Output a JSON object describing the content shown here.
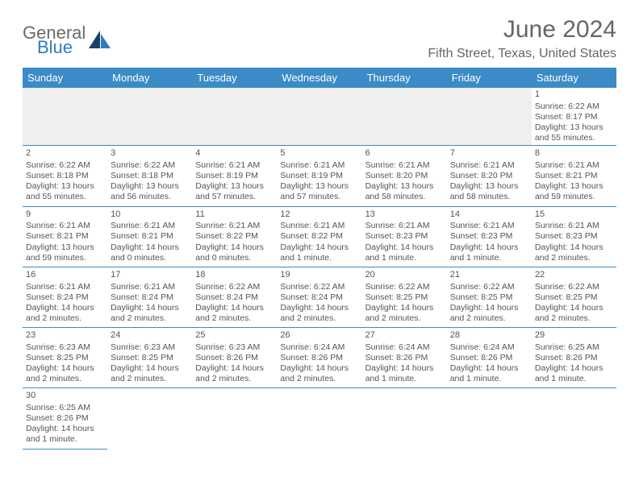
{
  "logo": {
    "text1": "General",
    "text2": "Blue"
  },
  "title": "June 2024",
  "subtitle": "Fifth Street, Texas, United States",
  "colors": {
    "header_bg": "#3b8bc6",
    "header_text": "#ffffff",
    "border": "#3b8bc6",
    "text": "#555555",
    "logo_gray": "#6a6a6a",
    "logo_blue": "#2f7bbf"
  },
  "day_headers": [
    "Sunday",
    "Monday",
    "Tuesday",
    "Wednesday",
    "Thursday",
    "Friday",
    "Saturday"
  ],
  "weeks": [
    [
      null,
      null,
      null,
      null,
      null,
      null,
      {
        "n": "1",
        "sr": "Sunrise: 6:22 AM",
        "ss": "Sunset: 8:17 PM",
        "dl": "Daylight: 13 hours and 55 minutes."
      }
    ],
    [
      {
        "n": "2",
        "sr": "Sunrise: 6:22 AM",
        "ss": "Sunset: 8:18 PM",
        "dl": "Daylight: 13 hours and 55 minutes."
      },
      {
        "n": "3",
        "sr": "Sunrise: 6:22 AM",
        "ss": "Sunset: 8:18 PM",
        "dl": "Daylight: 13 hours and 56 minutes."
      },
      {
        "n": "4",
        "sr": "Sunrise: 6:21 AM",
        "ss": "Sunset: 8:19 PM",
        "dl": "Daylight: 13 hours and 57 minutes."
      },
      {
        "n": "5",
        "sr": "Sunrise: 6:21 AM",
        "ss": "Sunset: 8:19 PM",
        "dl": "Daylight: 13 hours and 57 minutes."
      },
      {
        "n": "6",
        "sr": "Sunrise: 6:21 AM",
        "ss": "Sunset: 8:20 PM",
        "dl": "Daylight: 13 hours and 58 minutes."
      },
      {
        "n": "7",
        "sr": "Sunrise: 6:21 AM",
        "ss": "Sunset: 8:20 PM",
        "dl": "Daylight: 13 hours and 58 minutes."
      },
      {
        "n": "8",
        "sr": "Sunrise: 6:21 AM",
        "ss": "Sunset: 8:21 PM",
        "dl": "Daylight: 13 hours and 59 minutes."
      }
    ],
    [
      {
        "n": "9",
        "sr": "Sunrise: 6:21 AM",
        "ss": "Sunset: 8:21 PM",
        "dl": "Daylight: 13 hours and 59 minutes."
      },
      {
        "n": "10",
        "sr": "Sunrise: 6:21 AM",
        "ss": "Sunset: 8:21 PM",
        "dl": "Daylight: 14 hours and 0 minutes."
      },
      {
        "n": "11",
        "sr": "Sunrise: 6:21 AM",
        "ss": "Sunset: 8:22 PM",
        "dl": "Daylight: 14 hours and 0 minutes."
      },
      {
        "n": "12",
        "sr": "Sunrise: 6:21 AM",
        "ss": "Sunset: 8:22 PM",
        "dl": "Daylight: 14 hours and 1 minute."
      },
      {
        "n": "13",
        "sr": "Sunrise: 6:21 AM",
        "ss": "Sunset: 8:23 PM",
        "dl": "Daylight: 14 hours and 1 minute."
      },
      {
        "n": "14",
        "sr": "Sunrise: 6:21 AM",
        "ss": "Sunset: 8:23 PM",
        "dl": "Daylight: 14 hours and 1 minute."
      },
      {
        "n": "15",
        "sr": "Sunrise: 6:21 AM",
        "ss": "Sunset: 8:23 PM",
        "dl": "Daylight: 14 hours and 2 minutes."
      }
    ],
    [
      {
        "n": "16",
        "sr": "Sunrise: 6:21 AM",
        "ss": "Sunset: 8:24 PM",
        "dl": "Daylight: 14 hours and 2 minutes."
      },
      {
        "n": "17",
        "sr": "Sunrise: 6:21 AM",
        "ss": "Sunset: 8:24 PM",
        "dl": "Daylight: 14 hours and 2 minutes."
      },
      {
        "n": "18",
        "sr": "Sunrise: 6:22 AM",
        "ss": "Sunset: 8:24 PM",
        "dl": "Daylight: 14 hours and 2 minutes."
      },
      {
        "n": "19",
        "sr": "Sunrise: 6:22 AM",
        "ss": "Sunset: 8:24 PM",
        "dl": "Daylight: 14 hours and 2 minutes."
      },
      {
        "n": "20",
        "sr": "Sunrise: 6:22 AM",
        "ss": "Sunset: 8:25 PM",
        "dl": "Daylight: 14 hours and 2 minutes."
      },
      {
        "n": "21",
        "sr": "Sunrise: 6:22 AM",
        "ss": "Sunset: 8:25 PM",
        "dl": "Daylight: 14 hours and 2 minutes."
      },
      {
        "n": "22",
        "sr": "Sunrise: 6:22 AM",
        "ss": "Sunset: 8:25 PM",
        "dl": "Daylight: 14 hours and 2 minutes."
      }
    ],
    [
      {
        "n": "23",
        "sr": "Sunrise: 6:23 AM",
        "ss": "Sunset: 8:25 PM",
        "dl": "Daylight: 14 hours and 2 minutes."
      },
      {
        "n": "24",
        "sr": "Sunrise: 6:23 AM",
        "ss": "Sunset: 8:25 PM",
        "dl": "Daylight: 14 hours and 2 minutes."
      },
      {
        "n": "25",
        "sr": "Sunrise: 6:23 AM",
        "ss": "Sunset: 8:26 PM",
        "dl": "Daylight: 14 hours and 2 minutes."
      },
      {
        "n": "26",
        "sr": "Sunrise: 6:24 AM",
        "ss": "Sunset: 8:26 PM",
        "dl": "Daylight: 14 hours and 2 minutes."
      },
      {
        "n": "27",
        "sr": "Sunrise: 6:24 AM",
        "ss": "Sunset: 8:26 PM",
        "dl": "Daylight: 14 hours and 1 minute."
      },
      {
        "n": "28",
        "sr": "Sunrise: 6:24 AM",
        "ss": "Sunset: 8:26 PM",
        "dl": "Daylight: 14 hours and 1 minute."
      },
      {
        "n": "29",
        "sr": "Sunrise: 6:25 AM",
        "ss": "Sunset: 8:26 PM",
        "dl": "Daylight: 14 hours and 1 minute."
      }
    ],
    [
      {
        "n": "30",
        "sr": "Sunrise: 6:25 AM",
        "ss": "Sunset: 8:26 PM",
        "dl": "Daylight: 14 hours and 1 minute."
      },
      null,
      null,
      null,
      null,
      null,
      null
    ]
  ]
}
